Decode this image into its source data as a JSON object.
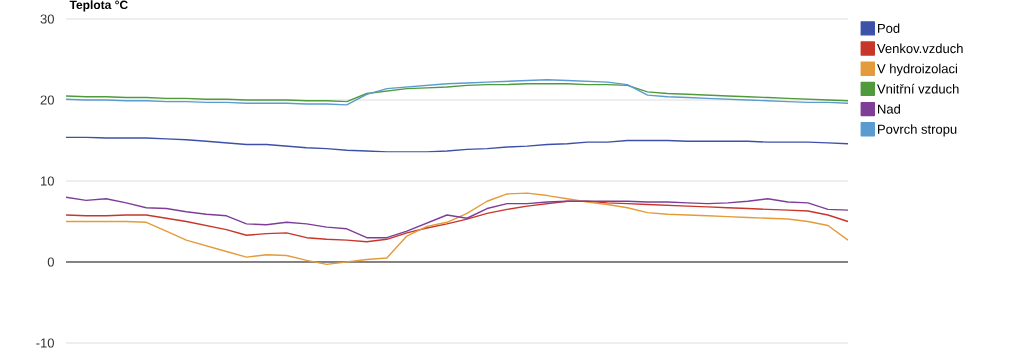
{
  "chart_data": {
    "type": "line",
    "title": "Teplota °C",
    "categories": [
      null,
      null,
      null,
      null,
      null,
      null,
      null,
      null,
      null,
      null,
      null,
      null,
      null,
      null,
      null,
      null,
      null,
      null,
      null,
      null,
      null,
      null,
      null,
      null,
      null,
      null,
      null,
      null,
      null,
      null,
      null,
      null,
      null,
      null,
      null,
      null,
      null,
      null,
      null,
      null
    ],
    "series": [
      {
        "name": "Pod",
        "color": "#3d51a8",
        "values": [
          15.4,
          15.4,
          15.3,
          15.3,
          15.3,
          15.2,
          15.1,
          14.9,
          14.7,
          14.5,
          14.5,
          14.3,
          14.1,
          14.0,
          13.8,
          13.7,
          13.6,
          13.6,
          13.6,
          13.7,
          13.9,
          14.0,
          14.2,
          14.3,
          14.5,
          14.6,
          14.8,
          14.8,
          15.0,
          15.0,
          15.0,
          14.9,
          14.9,
          14.9,
          14.9,
          14.8,
          14.8,
          14.8,
          14.7,
          14.6
        ]
      },
      {
        "name": "Venkov.vzduch",
        "color": "#c8362a",
        "values": [
          5.8,
          5.7,
          5.7,
          5.8,
          5.8,
          5.4,
          5.0,
          4.5,
          4.0,
          3.3,
          3.5,
          3.6,
          3.0,
          2.8,
          2.7,
          2.5,
          2.8,
          3.6,
          4.2,
          4.7,
          5.3,
          6.0,
          6.5,
          6.9,
          7.2,
          7.5,
          7.5,
          7.3,
          7.2,
          7.1,
          7.0,
          6.9,
          6.8,
          6.7,
          6.6,
          6.5,
          6.4,
          6.3,
          5.8,
          5.0
        ]
      },
      {
        "name": "V hydroizolaci",
        "color": "#e39b3b",
        "values": [
          5.0,
          5.0,
          5.0,
          5.0,
          4.9,
          3.8,
          2.7,
          2.0,
          1.3,
          0.6,
          0.9,
          0.8,
          0.2,
          -0.3,
          0.0,
          0.3,
          0.5,
          3.2,
          4.4,
          4.9,
          6.0,
          7.5,
          8.4,
          8.5,
          8.2,
          7.8,
          7.4,
          7.1,
          6.7,
          6.1,
          5.9,
          5.8,
          5.7,
          5.6,
          5.5,
          5.4,
          5.3,
          5.0,
          4.5,
          2.7
        ]
      },
      {
        "name": "Vnitřní vzduch",
        "color": "#4f9a3c",
        "values": [
          20.5,
          20.4,
          20.4,
          20.3,
          20.3,
          20.2,
          20.2,
          20.1,
          20.1,
          20.0,
          20.0,
          20.0,
          19.9,
          19.9,
          19.8,
          20.8,
          21.1,
          21.4,
          21.5,
          21.6,
          21.8,
          21.9,
          21.9,
          22.0,
          22.0,
          22.0,
          21.9,
          21.9,
          21.8,
          21.0,
          20.8,
          20.7,
          20.6,
          20.5,
          20.4,
          20.3,
          20.2,
          20.1,
          20.0,
          19.9
        ]
      },
      {
        "name": "Nad",
        "color": "#7e3e98",
        "values": [
          8.0,
          7.6,
          7.8,
          7.3,
          6.7,
          6.6,
          6.2,
          5.9,
          5.7,
          4.7,
          4.6,
          4.9,
          4.7,
          4.3,
          4.1,
          3.0,
          3.0,
          3.8,
          4.8,
          5.8,
          5.4,
          6.6,
          7.2,
          7.2,
          7.4,
          7.5,
          7.5,
          7.5,
          7.5,
          7.4,
          7.4,
          7.3,
          7.2,
          7.3,
          7.5,
          7.8,
          7.4,
          7.3,
          6.5,
          6.4
        ]
      },
      {
        "name": "Povrch stropu",
        "color": "#5a9cd0",
        "values": [
          20.1,
          20.0,
          20.0,
          19.9,
          19.9,
          19.8,
          19.8,
          19.7,
          19.7,
          19.6,
          19.6,
          19.6,
          19.5,
          19.5,
          19.4,
          20.7,
          21.4,
          21.6,
          21.8,
          22.0,
          22.1,
          22.2,
          22.3,
          22.4,
          22.5,
          22.4,
          22.3,
          22.2,
          21.9,
          20.6,
          20.4,
          20.3,
          20.2,
          20.1,
          20.0,
          19.9,
          19.8,
          19.7,
          19.7,
          19.6
        ]
      }
    ],
    "ylim": [
      -10,
      30
    ],
    "yticks": [
      -10,
      0,
      10,
      20,
      30
    ],
    "grid": "y",
    "legend": "right",
    "tick_labels": "y",
    "marker": "none",
    "line_style": "solid"
  }
}
